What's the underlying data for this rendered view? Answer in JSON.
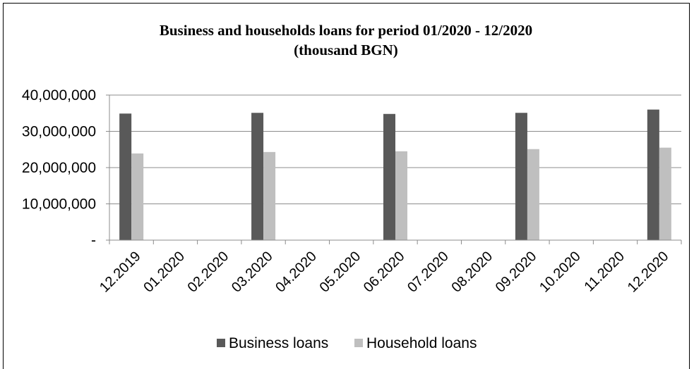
{
  "chart_data": {
    "type": "bar",
    "title": [
      "Business and households loans for period 01/2020 - 12/2020",
      "(thousand BGN)"
    ],
    "xlabel": "",
    "ylabel": "",
    "ylim": [
      0,
      40000000
    ],
    "yticks": [
      0,
      10000000,
      20000000,
      30000000,
      40000000
    ],
    "ytick_labels": [
      "-",
      "10,000,000",
      "20,000,000",
      "30,000,000",
      "40,000,000"
    ],
    "grid": true,
    "legend_position": "bottom",
    "categories": [
      "12.2019",
      "01.2020",
      "02.2020",
      "03.2020",
      "04.2020",
      "05.2020",
      "06.2020",
      "07.2020",
      "08.2020",
      "09.2020",
      "10.2020",
      "11.2020",
      "12.2020"
    ],
    "series": [
      {
        "name": "Business loans",
        "color": "#595959",
        "values": [
          34900000,
          null,
          null,
          35100000,
          null,
          null,
          34800000,
          null,
          null,
          35100000,
          null,
          null,
          36000000
        ]
      },
      {
        "name": "Household loans",
        "color": "#bfbfbf",
        "values": [
          23900000,
          null,
          null,
          24300000,
          null,
          null,
          24500000,
          null,
          null,
          25100000,
          null,
          null,
          25500000
        ]
      }
    ]
  }
}
